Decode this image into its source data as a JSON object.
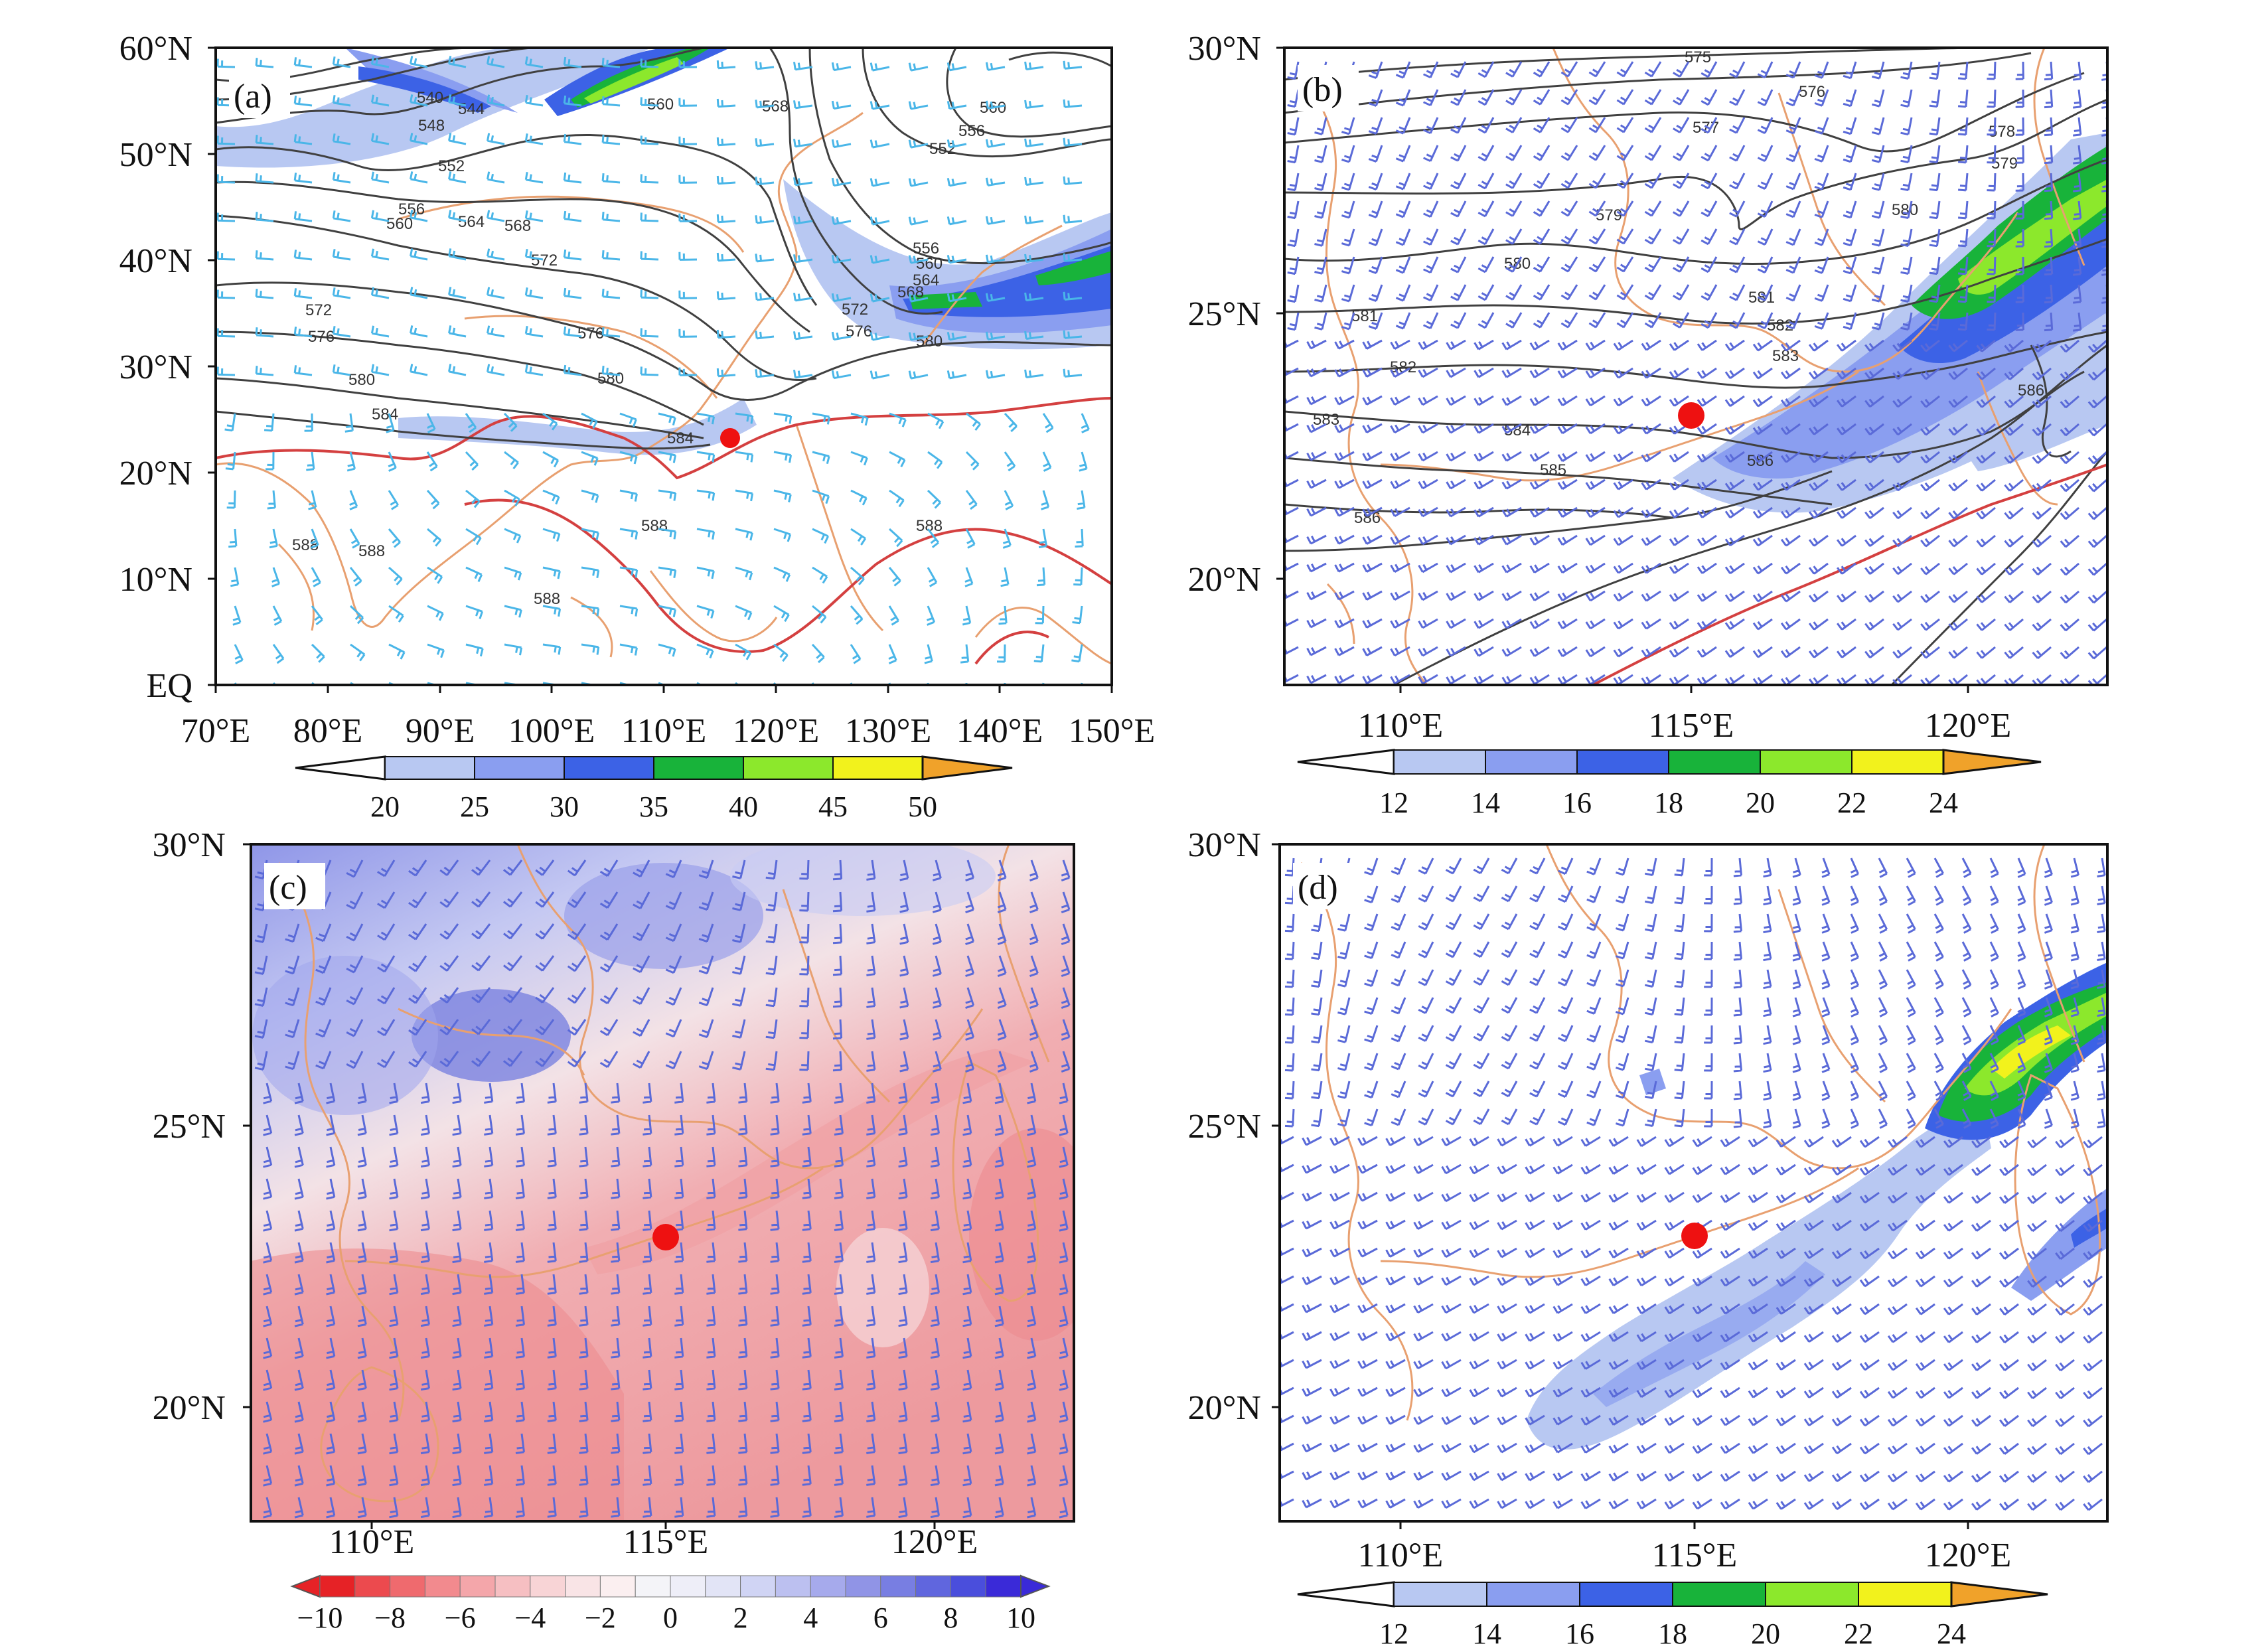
{
  "panels": [
    {
      "id": "a",
      "label": "(a)",
      "xticks": [
        "70°E",
        "80°E",
        "90°E",
        "100°E",
        "110°E",
        "120°E",
        "130°E",
        "140°E",
        "150°E"
      ],
      "yticks": [
        "60°N",
        "50°N",
        "40°N",
        "30°N",
        "20°N",
        "10°N",
        "EQ"
      ],
      "colorbar": {
        "ticks": [
          "20",
          "25",
          "30",
          "35",
          "40",
          "45",
          "50"
        ],
        "colors": [
          "#b8c8f2",
          "#8a9ef0",
          "#3c62e6",
          "#18b33a",
          "#8ce82c",
          "#f2f21c",
          "#f0a22a"
        ]
      },
      "contour_labels": [
        "540",
        "544",
        "548",
        "552",
        "556",
        "560",
        "564",
        "568",
        "572",
        "576",
        "580",
        "584",
        "588"
      ],
      "marker_color": "#ee1111"
    },
    {
      "id": "b",
      "label": "(b)",
      "xticks": [
        "110°E",
        "115°E",
        "120°E"
      ],
      "yticks": [
        "30°N",
        "25°N",
        "20°N"
      ],
      "colorbar": {
        "ticks": [
          "12",
          "14",
          "16",
          "18",
          "20",
          "22",
          "24"
        ],
        "colors": [
          "#b8c8f2",
          "#8a9ef0",
          "#3c62e6",
          "#18b33a",
          "#8ce82c",
          "#f2f21c",
          "#f0a22a"
        ]
      },
      "contour_labels": [
        "575",
        "576",
        "577",
        "578",
        "579",
        "580",
        "581",
        "582",
        "583",
        "584",
        "585",
        "586"
      ],
      "marker_color": "#ee1111"
    },
    {
      "id": "c",
      "label": "(c)",
      "xticks": [
        "110°E",
        "115°E",
        "120°E"
      ],
      "yticks": [
        "30°N",
        "25°N",
        "20°N"
      ],
      "colorbar": {
        "ticks": [
          "−10",
          "−8",
          "−6",
          "−4",
          "−2",
          "0",
          "2",
          "4",
          "6",
          "8",
          "10"
        ]
      },
      "marker_color": "#ee1111"
    },
    {
      "id": "d",
      "label": "(d)",
      "xticks": [
        "110°E",
        "115°E",
        "120°E"
      ],
      "yticks": [
        "30°N",
        "25°N",
        "20°N"
      ],
      "colorbar": {
        "ticks": [
          "12",
          "14",
          "16",
          "18",
          "20",
          "22",
          "24"
        ],
        "colors": [
          "#b8c8f2",
          "#8a9ef0",
          "#3c62e6",
          "#18b33a",
          "#8ce82c",
          "#f2f21c",
          "#f0a22a"
        ]
      },
      "marker_color": "#ee1111"
    }
  ],
  "colors": {
    "coast": "#e8a070",
    "barb_a": "#4ab6e8",
    "barb_bcd": "#5a6ad8",
    "contour": "#404040",
    "ridge": "#d44040"
  }
}
